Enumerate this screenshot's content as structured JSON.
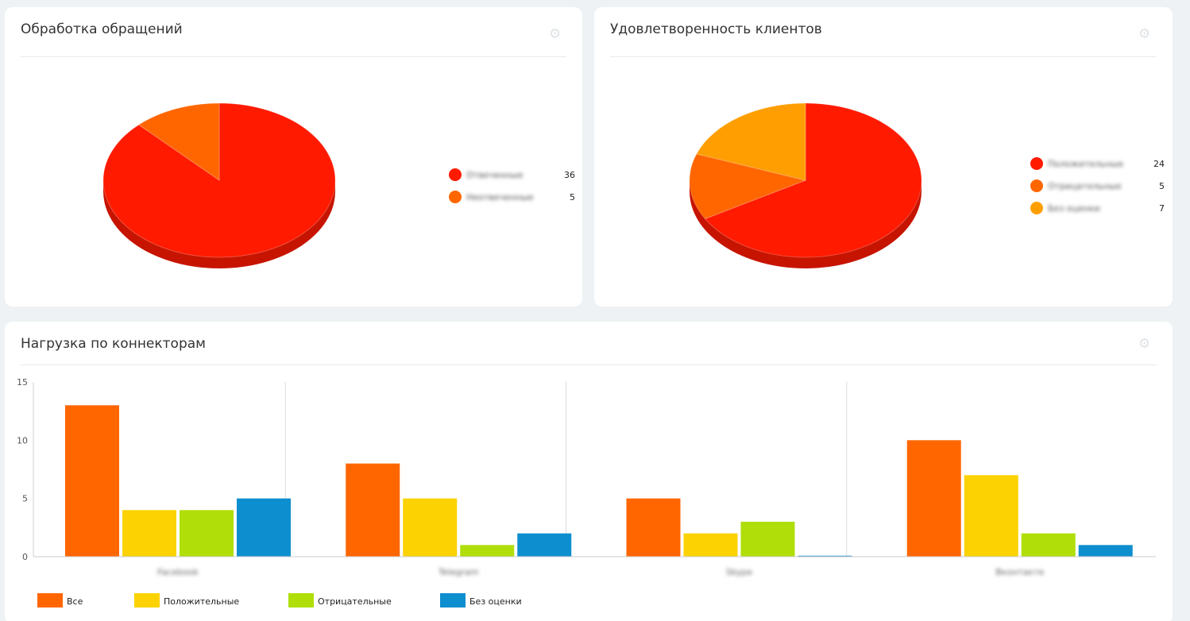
{
  "panels": {
    "processing": {
      "title": "Обработка обращений",
      "settings_icon": "gear-icon"
    },
    "satisfaction": {
      "title": "Удовлетворенность клиентов",
      "settings_icon": "gear-icon"
    },
    "connectors": {
      "title": "Нагрузка по коннекторам",
      "settings_icon": "gear-icon"
    }
  },
  "chart_data": [
    {
      "type": "pie",
      "title": "Обработка обращений",
      "slices": [
        {
          "label": "Отвеченные",
          "value": 36,
          "color": "#ff1a00"
        },
        {
          "label": "Неотвеченные",
          "value": 5,
          "color": "#ff6600"
        }
      ],
      "legend": "right"
    },
    {
      "type": "pie",
      "title": "Удовлетворенность клиентов",
      "slices": [
        {
          "label": "Положительные",
          "value": 24,
          "color": "#ff1a00"
        },
        {
          "label": "Отрицательные",
          "value": 5,
          "color": "#ff6600"
        },
        {
          "label": "Без оценки",
          "value": 7,
          "color": "#ff9e01"
        }
      ],
      "legend": "right"
    },
    {
      "type": "bar",
      "title": "Нагрузка по коннекторам",
      "categories": [
        "Facebook",
        "Telegram",
        "Skype",
        "Вконтакте"
      ],
      "ylim": [
        0,
        15
      ],
      "yticks": [
        0,
        5,
        10,
        15
      ],
      "grid": true,
      "legend": "bottom-left",
      "series": [
        {
          "name": "Все",
          "color": "#ff6600",
          "values": [
            13,
            8,
            5,
            10
          ]
        },
        {
          "name": "Положительные",
          "color": "#fcd202",
          "values": [
            4,
            5,
            2,
            7
          ]
        },
        {
          "name": "Отрицательные",
          "color": "#b0de09",
          "values": [
            4,
            1,
            3,
            2
          ]
        },
        {
          "name": "Без оценки",
          "color": "#0d8ecf",
          "values": [
            5,
            2,
            0,
            1
          ]
        }
      ]
    }
  ]
}
